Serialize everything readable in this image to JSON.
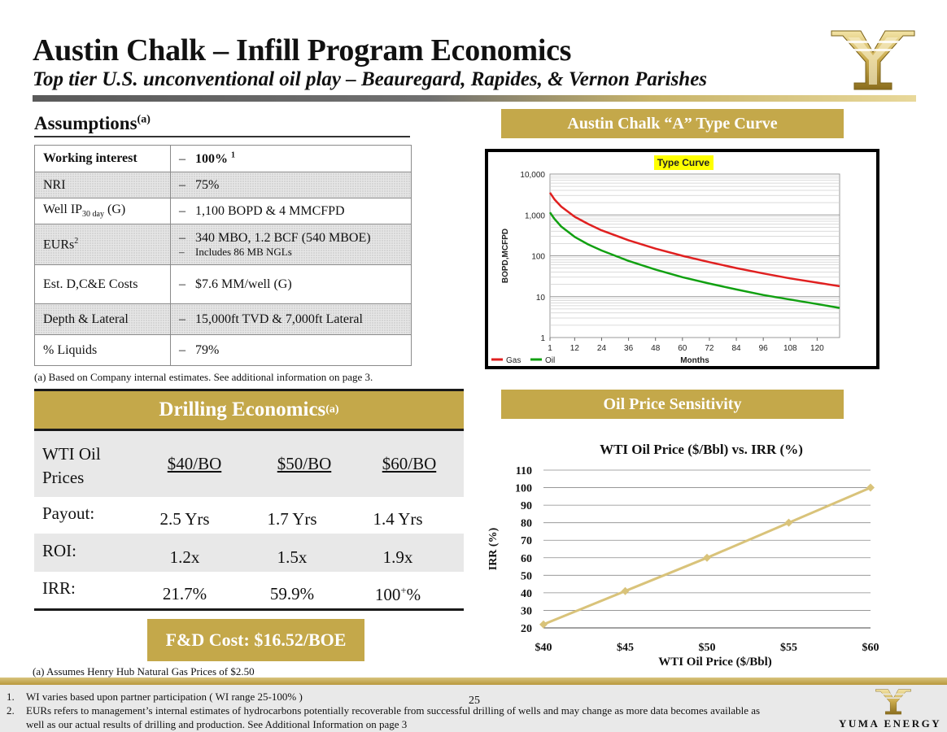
{
  "header": {
    "title": "Austin Chalk – Infill Program Economics",
    "subtitle": "Top tier U.S. unconventional oil play – Beauregard, Rapides, & Vernon Parishes"
  },
  "assumptions": {
    "heading": "Assumptions",
    "heading_sup": "(a)",
    "rows": [
      {
        "label": "Working interest",
        "value": "100%",
        "value_sup": "1"
      },
      {
        "label": "NRI",
        "value": "75%"
      },
      {
        "label_main": "Well IP",
        "label_sub": "30 day",
        "label_tail": " (G)",
        "value": "1,100 BOPD & 4 MMCFPD"
      },
      {
        "label_main": "EURs",
        "label_sup": "2",
        "value": "340 MBO, 1.2 BCF (540 MBOE)",
        "value2": "Includes 86 MB NGLs"
      },
      {
        "label": "Est. D,C&E Costs",
        "value": "$7.6 MM/well (G)"
      },
      {
        "label": "Depth & Lateral",
        "value": "15,000ft TVD & 7,000ft Lateral"
      },
      {
        "label": "% Liquids",
        "value": "79%"
      }
    ],
    "dash": "–",
    "footnote": "(a)  Based on Company internal estimates.  See additional information on page 3."
  },
  "drilling": {
    "heading": "Drilling Economics",
    "heading_sup": "(a)",
    "row_labels": {
      "prices_1": "WTI Oil",
      "prices_2": "Prices",
      "payout": "Payout:",
      "roi": "ROI:",
      "irr": "IRR:"
    },
    "prices": [
      "$40/BO",
      "$50/BO",
      "$60/BO"
    ],
    "payout": [
      "2.5 Yrs",
      "1.7 Yrs",
      "1.4 Yrs"
    ],
    "roi": [
      "1.2x",
      "1.5x",
      "1.9x"
    ],
    "irr": [
      "21.7%",
      "59.9%"
    ],
    "irr_last_base": "100",
    "irr_last_sup": "+",
    "irr_last_tail": "%",
    "fd_cost": "F&D Cost: $16.52/BOE",
    "footnote": "(a)  Assumes Henry Hub Natural Gas Prices of $2.50"
  },
  "type_curve_banner": "Austin Chalk “A” Type Curve",
  "price_sensitivity_banner": "Oil Price Sensitivity",
  "chart_data": [
    {
      "type": "line",
      "title": "Type Curve",
      "xlabel": "Months",
      "ylabel": "BOPD,MCFPD",
      "yscale": "log",
      "ylim": [
        1,
        10000
      ],
      "xlim": [
        1,
        130
      ],
      "xticks": [
        "1",
        "12",
        "24",
        "36",
        "48",
        "60",
        "72",
        "84",
        "96",
        "108",
        "120"
      ],
      "yticks": [
        "1",
        "10",
        "100",
        "1,000",
        "10,000"
      ],
      "x": [
        1,
        3,
        6,
        12,
        18,
        24,
        36,
        48,
        60,
        72,
        84,
        96,
        108,
        120,
        130
      ],
      "series": [
        {
          "name": "Gas",
          "color": "#e02020",
          "values": [
            3500,
            2400,
            1600,
            900,
            600,
            420,
            240,
            150,
            100,
            70,
            50,
            37,
            28,
            22,
            18
          ]
        },
        {
          "name": "Oil",
          "color": "#11a011",
          "values": [
            1150,
            800,
            520,
            290,
            190,
            135,
            75,
            46,
            30,
            21,
            15,
            11,
            8.5,
            6.6,
            5.3
          ]
        }
      ],
      "legend": "bottom-left"
    },
    {
      "type": "line",
      "title": "WTI Oil Price ($/Bbl) vs. IRR (%)",
      "xlabel": "WTI Oil Price ($/Bbl)",
      "ylabel": "IRR (%)",
      "categories": [
        "$40",
        "$45",
        "$50",
        "$55",
        "$60"
      ],
      "x": [
        40,
        45,
        50,
        55,
        60
      ],
      "values": [
        22,
        41,
        60,
        80,
        100
      ],
      "ylim": [
        20,
        110
      ],
      "yticks": [
        20,
        30,
        40,
        50,
        60,
        70,
        80,
        90,
        100,
        110
      ],
      "color": "#d9c37a",
      "grid": true
    }
  ],
  "footer": {
    "notes": [
      {
        "num": "1.",
        "text": "WI varies based upon partner participation ( WI range 25-100% )"
      },
      {
        "num": "2.",
        "text": "EURs refers to management’s internal estimates of hydrocarbons potentially recoverable from successful drilling of wells and may change as more data becomes available as",
        "text2": "well as our actual results of drilling and production. See Additional Information on page 3"
      }
    ],
    "page_number": "25",
    "brand": "YUMA ENERGY"
  }
}
